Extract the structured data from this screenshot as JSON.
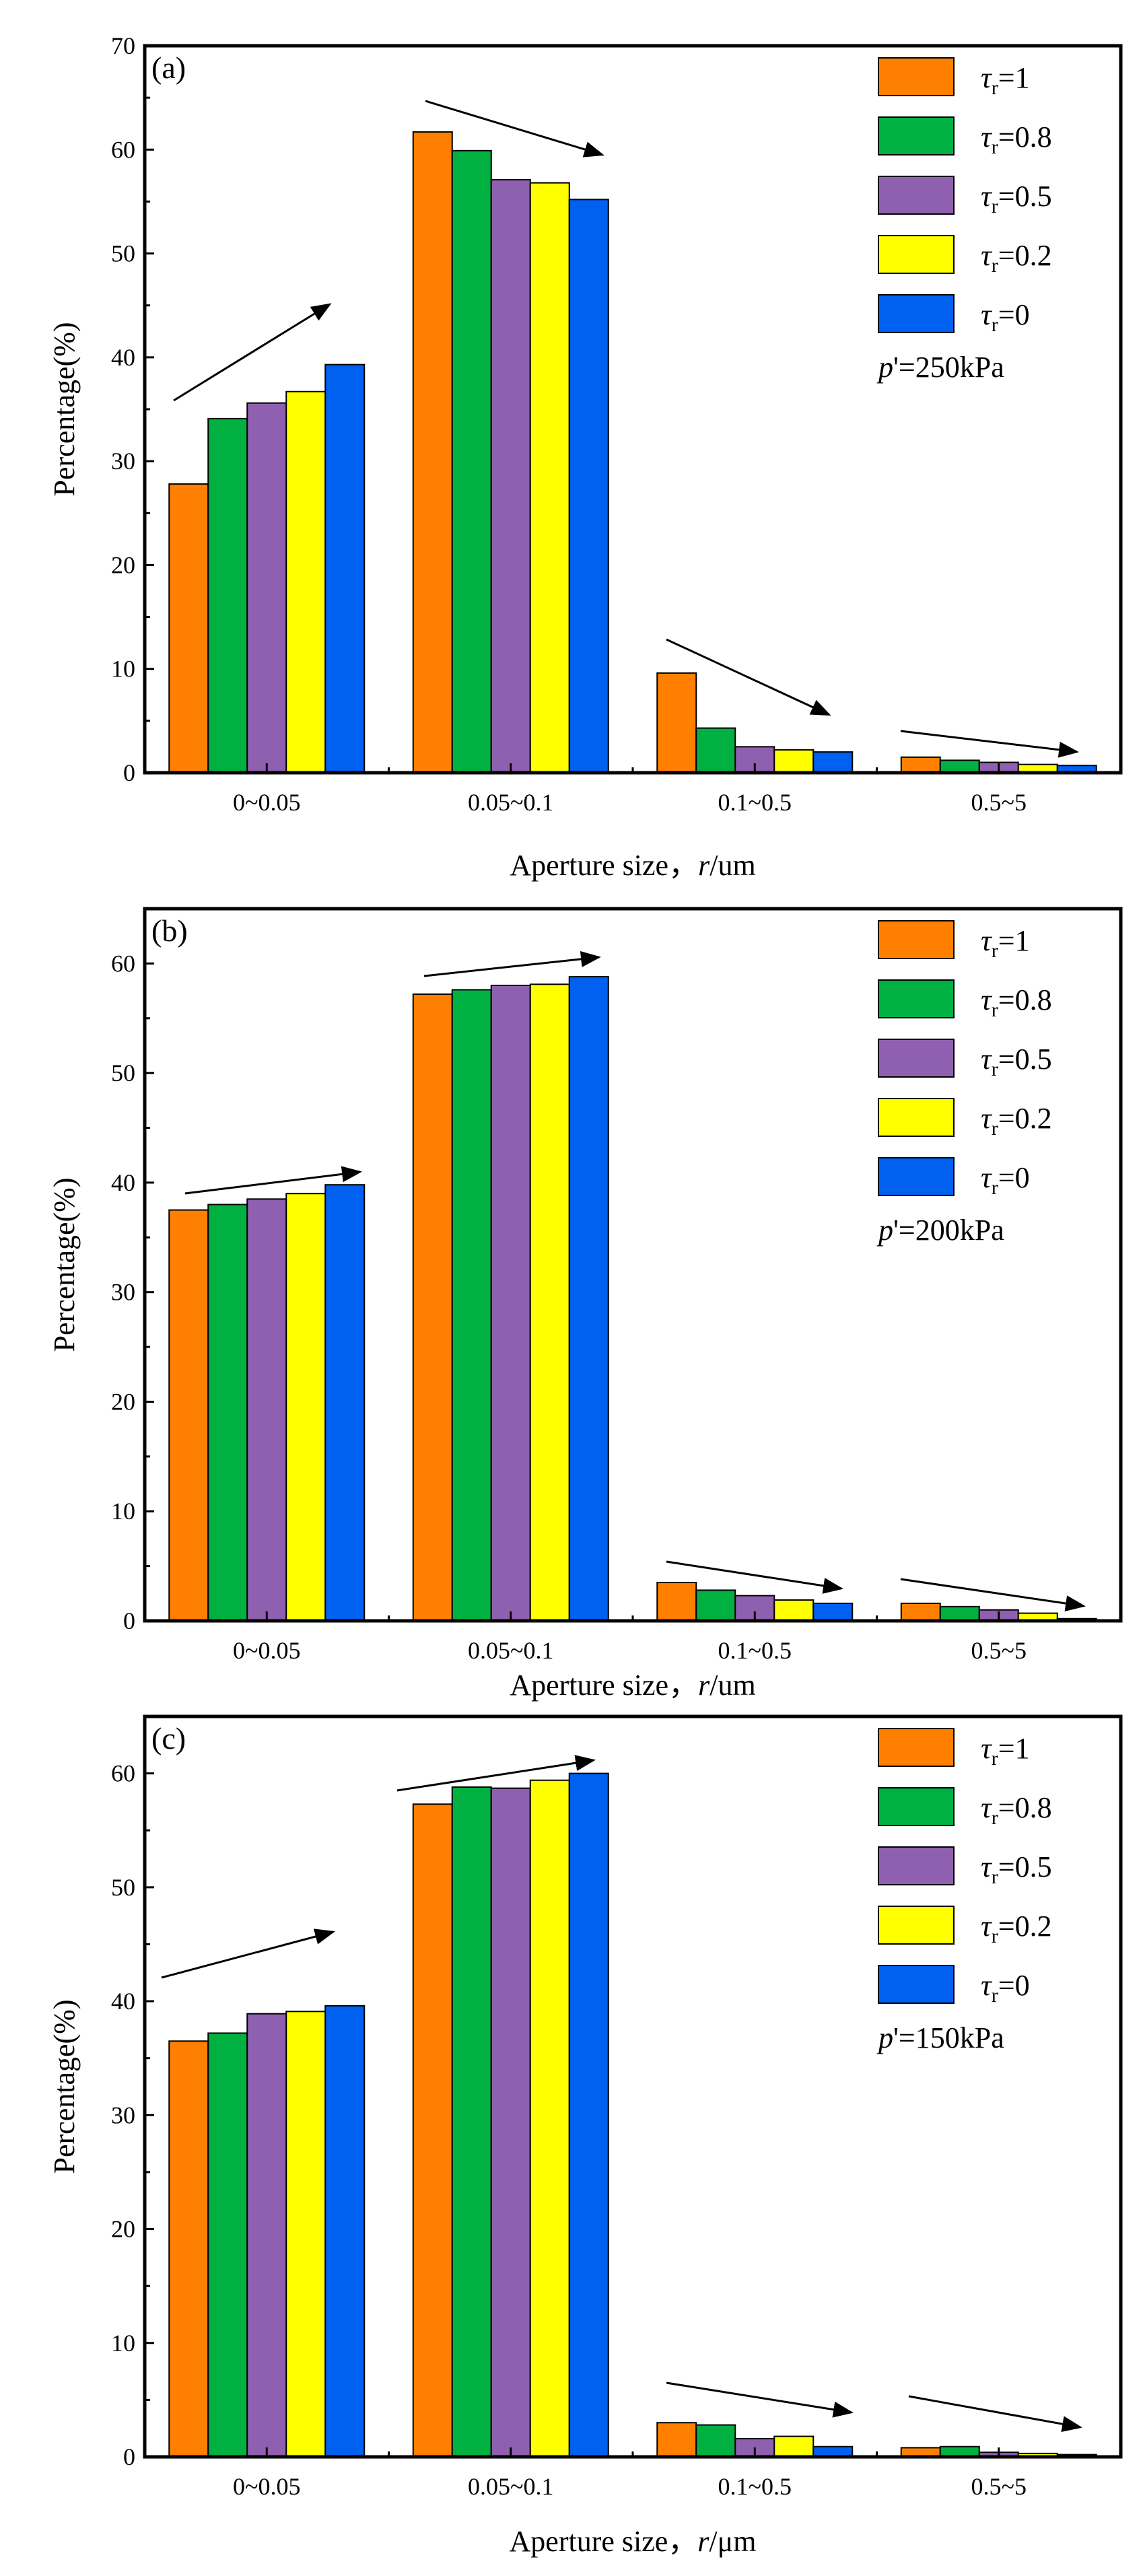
{
  "colors": {
    "tau_1": "#ff8000",
    "tau_0_8": "#00b040",
    "tau_0_5": "#9060b0",
    "tau_0_2": "#ffff00",
    "tau_0": "#0060f0"
  },
  "chart_data": [
    {
      "type": "bar",
      "panel_label": "(a)",
      "pressure_label": "=250kPa",
      "xlabel": "Aperture size，",
      "xlabel_unit": "/um",
      "ylabel": "Percentage(%)",
      "ylim": [
        0,
        70
      ],
      "yticks": [
        0,
        10,
        20,
        30,
        40,
        50,
        60,
        70
      ],
      "categories": [
        "0~0.05",
        "0.05~0.1",
        "0.1~0.5",
        "0.5~5"
      ],
      "series": [
        {
          "name": "τr=1",
          "tau": "1",
          "values": [
            27.8,
            61.7,
            9.6,
            1.5
          ]
        },
        {
          "name": "τr=0.8",
          "tau": "0.8",
          "values": [
            34.1,
            59.9,
            4.3,
            1.2
          ]
        },
        {
          "name": "τr=0.5",
          "tau": "0.5",
          "values": [
            35.6,
            57.1,
            2.5,
            1.0
          ]
        },
        {
          "name": "τr=0.2",
          "tau": "0.2",
          "values": [
            36.7,
            56.8,
            2.2,
            0.8
          ]
        },
        {
          "name": "τr=0",
          "tau": "0",
          "values": [
            39.3,
            55.2,
            2.0,
            0.7
          ]
        }
      ]
    },
    {
      "type": "bar",
      "panel_label": "(b)",
      "pressure_label": "=200kPa",
      "xlabel": "Aperture size，",
      "xlabel_unit": "/um",
      "ylabel": "Percentage(%)",
      "ylim": [
        0,
        65
      ],
      "yticks": [
        0,
        10,
        20,
        30,
        40,
        50,
        60
      ],
      "categories": [
        "0~0.05",
        "0.05~0.1",
        "0.1~0.5",
        "0.5~5"
      ],
      "series": [
        {
          "name": "τr=1",
          "tau": "1",
          "values": [
            37.5,
            57.2,
            3.5,
            1.6
          ]
        },
        {
          "name": "τr=0.8",
          "tau": "0.8",
          "values": [
            38.0,
            57.6,
            2.8,
            1.3
          ]
        },
        {
          "name": "τr=0.5",
          "tau": "0.5",
          "values": [
            38.5,
            58.0,
            2.3,
            1.0
          ]
        },
        {
          "name": "τr=0.2",
          "tau": "0.2",
          "values": [
            39.0,
            58.1,
            1.9,
            0.7
          ]
        },
        {
          "name": "τr=0",
          "tau": "0",
          "values": [
            39.8,
            58.8,
            1.6,
            0.2
          ]
        }
      ]
    },
    {
      "type": "bar",
      "panel_label": "(c)",
      "pressure_label": "=150kPa",
      "xlabel": "Aperture size，",
      "xlabel_unit": "/μm",
      "ylabel": "Percentage(%)",
      "ylim": [
        0,
        65
      ],
      "yticks": [
        0,
        10,
        20,
        30,
        40,
        50,
        60
      ],
      "categories": [
        "0~0.05",
        "0.05~0.1",
        "0.1~0.5",
        "0.5~5"
      ],
      "series": [
        {
          "name": "τr=1",
          "tau": "1",
          "values": [
            36.5,
            57.3,
            3.0,
            0.8
          ]
        },
        {
          "name": "τr=0.8",
          "tau": "0.8",
          "values": [
            37.2,
            58.8,
            2.8,
            0.9
          ]
        },
        {
          "name": "τr=0.5",
          "tau": "0.5",
          "values": [
            38.9,
            58.7,
            1.6,
            0.4
          ]
        },
        {
          "name": "τr=0.2",
          "tau": "0.2",
          "values": [
            39.1,
            59.4,
            1.8,
            0.3
          ]
        },
        {
          "name": "τr=0",
          "tau": "0",
          "values": [
            39.6,
            60.0,
            0.9,
            0.2
          ]
        }
      ]
    }
  ]
}
